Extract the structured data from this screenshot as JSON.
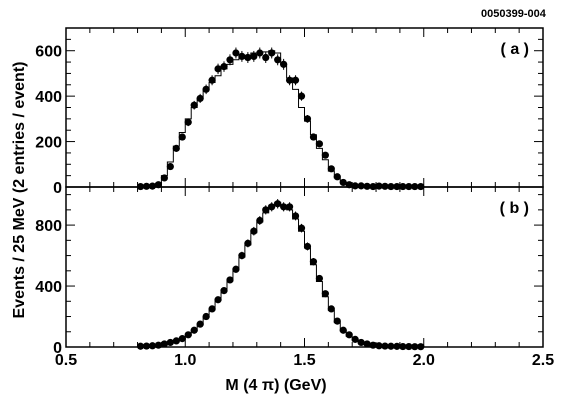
{
  "figure_id": "0050399-004",
  "xlabel": "M (4 π) (GeV)",
  "ylabel": "Events / 25 MeV (2 entries / event)",
  "chart_data": [
    {
      "type": "scatter",
      "panel_label": "( a )",
      "xlabel": "M (4 π) (GeV)",
      "ylabel": "Events / 25 MeV (2 entries / event)",
      "xlim": [
        0.5,
        2.5
      ],
      "ylim": [
        0,
        700
      ],
      "x_ticks": [
        "0.5",
        "1.0",
        "1.5",
        "2.0",
        "2.5"
      ],
      "y_ticks": [
        "0",
        "200",
        "400",
        "600"
      ],
      "series": [
        {
          "x": [
            0.8125,
            0.8375,
            0.8625,
            0.8875,
            0.9125,
            0.9375,
            0.9625,
            0.9875,
            1.0125,
            1.0375,
            1.0625,
            1.0875,
            1.1125,
            1.1375,
            1.1625,
            1.1875,
            1.2125,
            1.2375,
            1.2625,
            1.2875,
            1.3125,
            1.3375,
            1.3625,
            1.3875,
            1.4125,
            1.4375,
            1.4625,
            1.4875,
            1.5125,
            1.5375,
            1.5625,
            1.5875,
            1.6125,
            1.6375,
            1.6625,
            1.6875,
            1.7125,
            1.7375,
            1.7625,
            1.7875,
            1.8125,
            1.8375,
            1.8625,
            1.8875,
            1.9125,
            1.9375,
            1.9625,
            1.9875
          ],
          "y": [
            2,
            3,
            4,
            10,
            40,
            90,
            170,
            220,
            285,
            360,
            390,
            430,
            470,
            520,
            530,
            560,
            590,
            575,
            570,
            575,
            590,
            570,
            590,
            560,
            540,
            470,
            470,
            400,
            300,
            220,
            190,
            140,
            80,
            45,
            20,
            10,
            5,
            5,
            3,
            2,
            4,
            3,
            2,
            2,
            2,
            2,
            2,
            2
          ],
          "yerr": [
            2,
            2,
            2,
            4,
            7,
            10,
            13,
            15,
            17,
            19,
            20,
            21,
            22,
            23,
            23,
            24,
            24,
            24,
            24,
            24,
            24,
            24,
            24,
            24,
            24,
            22,
            22,
            20,
            17,
            15,
            14,
            12,
            9,
            7,
            5,
            3,
            2,
            2,
            2,
            2,
            2,
            2,
            2,
            2,
            2,
            2,
            2,
            2
          ]
        },
        {
          "x": [
            0.8125,
            0.8375,
            0.8625,
            0.8875,
            0.9125,
            0.9375,
            0.9625,
            0.9875,
            1.0125,
            1.0375,
            1.0625,
            1.0875,
            1.1125,
            1.1375,
            1.1625,
            1.1875,
            1.2125,
            1.2375,
            1.2625,
            1.2875,
            1.3125,
            1.3375,
            1.3625,
            1.3875,
            1.4125,
            1.4375,
            1.4625,
            1.4875,
            1.5125,
            1.5375,
            1.5625,
            1.5875,
            1.6125,
            1.6375,
            1.6625,
            1.6875,
            1.7125,
            1.7375,
            1.7625,
            1.7875,
            1.8125,
            1.8375,
            1.8625,
            1.8875,
            1.9125,
            1.9375,
            1.9625,
            1.9875
          ],
          "y": [
            0,
            2,
            4,
            15,
            50,
            110,
            180,
            240,
            300,
            350,
            390,
            430,
            460,
            490,
            520,
            540,
            560,
            570,
            580,
            590,
            590,
            595,
            600,
            590,
            540,
            480,
            430,
            350,
            290,
            230,
            170,
            120,
            70,
            40,
            20,
            10,
            5,
            3,
            2,
            2,
            2,
            2,
            1,
            1,
            1,
            1,
            1,
            1
          ]
        }
      ]
    },
    {
      "type": "scatter",
      "panel_label": "( b )",
      "xlabel": "M (4 π) (GeV)",
      "ylabel": "Events / 25 MeV (2 entries / event)",
      "xlim": [
        0.5,
        2.5
      ],
      "ylim": [
        0,
        1050
      ],
      "x_ticks": [
        "0.5",
        "1.0",
        "1.5",
        "2.0",
        "2.5"
      ],
      "y_ticks": [
        "0",
        "400",
        "800"
      ],
      "series": [
        {
          "x": [
            0.8125,
            0.8375,
            0.8625,
            0.8875,
            0.9125,
            0.9375,
            0.9625,
            0.9875,
            1.0125,
            1.0375,
            1.0625,
            1.0875,
            1.1125,
            1.1375,
            1.1625,
            1.1875,
            1.2125,
            1.2375,
            1.2625,
            1.2875,
            1.3125,
            1.3375,
            1.3625,
            1.3875,
            1.4125,
            1.4375,
            1.4625,
            1.4875,
            1.5125,
            1.5375,
            1.5625,
            1.5875,
            1.6125,
            1.6375,
            1.6625,
            1.6875,
            1.7125,
            1.7375,
            1.7625,
            1.7875,
            1.8125,
            1.8375,
            1.8625,
            1.8875,
            1.9125,
            1.9375,
            1.9625,
            1.9875
          ],
          "y": [
            5,
            6,
            8,
            12,
            20,
            30,
            40,
            55,
            80,
            110,
            150,
            200,
            250,
            310,
            370,
            440,
            510,
            600,
            680,
            760,
            830,
            900,
            920,
            940,
            920,
            920,
            860,
            780,
            660,
            560,
            450,
            350,
            250,
            170,
            110,
            80,
            50,
            30,
            20,
            12,
            8,
            6,
            5,
            4,
            3,
            3,
            2,
            2
          ],
          "yerr": [
            2,
            2,
            3,
            3,
            4,
            5,
            6,
            7,
            9,
            10,
            12,
            14,
            16,
            18,
            19,
            21,
            23,
            25,
            26,
            28,
            29,
            30,
            30,
            31,
            30,
            30,
            29,
            28,
            26,
            24,
            21,
            19,
            16,
            13,
            10,
            9,
            7,
            5,
            4,
            3,
            3,
            2,
            2,
            2,
            2,
            2,
            2,
            2
          ]
        },
        {
          "x": [
            0.8125,
            0.8375,
            0.8625,
            0.8875,
            0.9125,
            0.9375,
            0.9625,
            0.9875,
            1.0125,
            1.0375,
            1.0625,
            1.0875,
            1.1125,
            1.1375,
            1.1625,
            1.1875,
            1.2125,
            1.2375,
            1.2625,
            1.2875,
            1.3125,
            1.3375,
            1.3625,
            1.3875,
            1.4125,
            1.4375,
            1.4625,
            1.4875,
            1.5125,
            1.5375,
            1.5625,
            1.5875,
            1.6125,
            1.6375,
            1.6625,
            1.6875,
            1.7125,
            1.7375,
            1.7625,
            1.7875,
            1.8125,
            1.8375,
            1.8625,
            1.8875,
            1.9125,
            1.9375,
            1.9625,
            1.9875
          ],
          "y": [
            4,
            5,
            7,
            10,
            18,
            28,
            38,
            50,
            75,
            105,
            145,
            195,
            245,
            305,
            365,
            435,
            505,
            590,
            670,
            750,
            820,
            880,
            930,
            950,
            930,
            900,
            840,
            760,
            650,
            540,
            430,
            330,
            240,
            160,
            105,
            70,
            45,
            28,
            18,
            11,
            7,
            5,
            4,
            3,
            3,
            2,
            2,
            2
          ]
        }
      ]
    }
  ]
}
